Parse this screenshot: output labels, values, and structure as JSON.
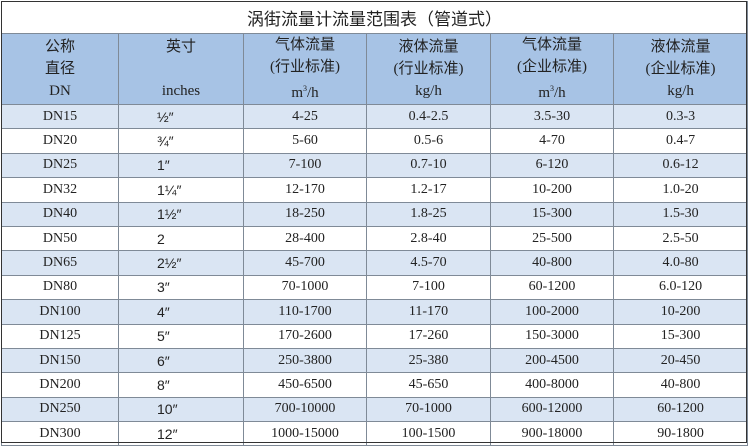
{
  "title": "涡街流量计流量范围表（管道式）",
  "headers": [
    {
      "line1": "公称",
      "line2": "直径",
      "line3": "DN"
    },
    {
      "line1": "英寸",
      "line2": "inches"
    },
    {
      "line1": "气体流量",
      "line2": "(行业标准)",
      "unit": "m",
      "unit_sup": "3",
      "unit_tail": "/h"
    },
    {
      "line1": "液体流量",
      "line2": "(行业标准)",
      "unit": "kg/h"
    },
    {
      "line1": "气体流量",
      "line2": "(企业标准)",
      "unit": "m",
      "unit_sup": "3",
      "unit_tail": "/h"
    },
    {
      "line1": "液体流量",
      "line2": "(企业标准)",
      "unit": "kg/h"
    }
  ],
  "rows": [
    [
      "DN15",
      "½″",
      "4-25",
      "0.4-2.5",
      "3.5-30",
      "0.3-3"
    ],
    [
      "DN20",
      "¾″",
      "5-60",
      "0.5-6",
      "4-70",
      "0.4-7"
    ],
    [
      "DN25",
      "1″",
      "7-100",
      "0.7-10",
      "6-120",
      "0.6-12"
    ],
    [
      "DN32",
      "1¼″",
      "12-170",
      "1.2-17",
      "10-200",
      "1.0-20"
    ],
    [
      "DN40",
      "1½″",
      "18-250",
      "1.8-25",
      "15-300",
      "1.5-30"
    ],
    [
      "DN50",
      "2",
      "28-400",
      "2.8-40",
      "25-500",
      "2.5-50"
    ],
    [
      "DN65",
      "2½″",
      "45-700",
      "4.5-70",
      "40-800",
      "4.0-80"
    ],
    [
      "DN80",
      "3″",
      "70-1000",
      "7-100",
      "60-1200",
      "6.0-120"
    ],
    [
      "DN100",
      "4″",
      "110-1700",
      "11-170",
      "100-2000",
      "10-200"
    ],
    [
      "DN125",
      "5″",
      "170-2600",
      "17-260",
      "150-3000",
      "15-300"
    ],
    [
      "DN150",
      "6″",
      "250-3800",
      "25-380",
      "200-4500",
      "20-450"
    ],
    [
      "DN200",
      "8″",
      "450-6500",
      "45-650",
      "400-8000",
      "40-800"
    ],
    [
      "DN250",
      "10″",
      "700-10000",
      "70-1000",
      "600-12000",
      "60-1200"
    ],
    [
      "DN300",
      "12″",
      "1000-15000",
      "100-1500",
      "900-18000",
      "90-1800"
    ]
  ]
}
